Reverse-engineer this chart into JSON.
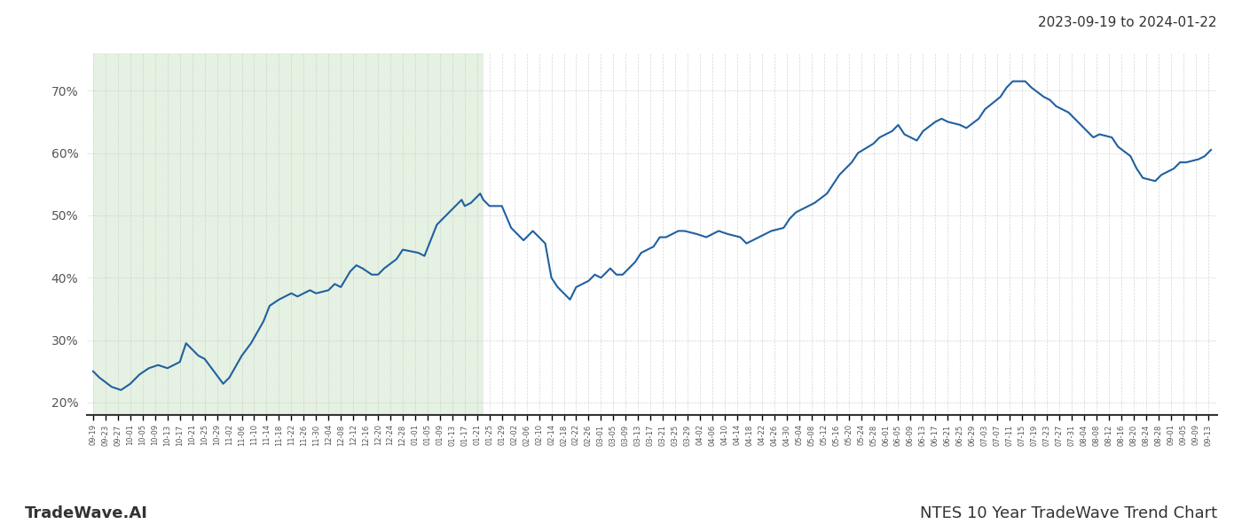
{
  "title_top_right": "2023-09-19 to 2024-01-22",
  "title_bottom_left": "TradeWave.AI",
  "title_bottom_right": "NTES 10 Year TradeWave Trend Chart",
  "line_color": "#2060a0",
  "line_width": 1.5,
  "highlight_color": "#d4e8d0",
  "highlight_alpha": 0.6,
  "highlight_start": "2023-09-19",
  "highlight_end": "2024-01-23",
  "ylim": [
    18,
    76
  ],
  "yticks": [
    20,
    30,
    40,
    50,
    60,
    70
  ],
  "ytick_labels": [
    "20%",
    "30%",
    "40%",
    "50%",
    "60%",
    "70%"
  ],
  "background_color": "#ffffff",
  "grid_color": "#cccccc",
  "dates": [
    "2023-09-19",
    "2023-09-21",
    "2023-09-25",
    "2023-09-28",
    "2023-10-01",
    "2023-10-04",
    "2023-10-07",
    "2023-10-10",
    "2023-10-13",
    "2023-10-17",
    "2023-10-19",
    "2023-10-23",
    "2023-10-25",
    "2023-10-31",
    "2023-11-02",
    "2023-11-06",
    "2023-11-09",
    "2023-11-13",
    "2023-11-15",
    "2023-11-18",
    "2023-11-22",
    "2023-11-24",
    "2023-11-28",
    "2023-11-30",
    "2023-12-04",
    "2023-12-06",
    "2023-12-08",
    "2023-12-11",
    "2023-12-13",
    "2023-12-15",
    "2023-12-18",
    "2023-12-20",
    "2023-12-22",
    "2023-12-26",
    "2023-12-28",
    "2024-01-02",
    "2024-01-04",
    "2024-01-08",
    "2024-01-11",
    "2024-01-16",
    "2024-01-17",
    "2024-01-19",
    "2024-01-22",
    "2024-01-23",
    "2024-01-25",
    "2024-01-29",
    "2024-02-01",
    "2024-02-05",
    "2024-02-08",
    "2024-02-12",
    "2024-02-14",
    "2024-02-16",
    "2024-02-20",
    "2024-02-22",
    "2024-02-26",
    "2024-02-28",
    "2024-03-01",
    "2024-03-04",
    "2024-03-06",
    "2024-03-08",
    "2024-03-12",
    "2024-03-14",
    "2024-03-18",
    "2024-03-20",
    "2024-03-22",
    "2024-03-26",
    "2024-03-28",
    "2024-04-01",
    "2024-04-04",
    "2024-04-08",
    "2024-04-11",
    "2024-04-15",
    "2024-04-17",
    "2024-04-19",
    "2024-04-23",
    "2024-04-25",
    "2024-04-29",
    "2024-05-01",
    "2024-05-03",
    "2024-05-07",
    "2024-05-09",
    "2024-05-13",
    "2024-05-15",
    "2024-05-17",
    "2024-05-21",
    "2024-05-23",
    "2024-05-28",
    "2024-05-30",
    "2024-06-03",
    "2024-06-05",
    "2024-06-07",
    "2024-06-11",
    "2024-06-13",
    "2024-06-17",
    "2024-06-19",
    "2024-06-21",
    "2024-06-25",
    "2024-06-27",
    "2024-07-01",
    "2024-07-03",
    "2024-07-08",
    "2024-07-10",
    "2024-07-12",
    "2024-07-16",
    "2024-07-18",
    "2024-07-22",
    "2024-07-24",
    "2024-07-26",
    "2024-07-30",
    "2024-08-01",
    "2024-08-05",
    "2024-08-07",
    "2024-08-09",
    "2024-08-13",
    "2024-08-15",
    "2024-08-19",
    "2024-08-21",
    "2024-08-23",
    "2024-08-27",
    "2024-08-29",
    "2024-09-02",
    "2024-09-04",
    "2024-09-06",
    "2024-09-10",
    "2024-09-12",
    "2024-09-14"
  ],
  "values": [
    25.0,
    24.0,
    22.5,
    22.0,
    23.0,
    24.5,
    25.5,
    26.0,
    25.5,
    26.5,
    29.5,
    27.5,
    27.0,
    23.0,
    24.0,
    27.5,
    29.5,
    33.0,
    35.5,
    36.5,
    37.5,
    37.0,
    38.0,
    37.5,
    38.0,
    39.0,
    38.5,
    41.0,
    42.0,
    41.5,
    40.5,
    40.5,
    41.5,
    43.0,
    44.5,
    44.0,
    43.5,
    48.5,
    50.0,
    52.5,
    51.5,
    52.0,
    53.5,
    52.5,
    51.5,
    51.5,
    48.0,
    46.0,
    47.5,
    45.5,
    40.0,
    38.5,
    36.5,
    38.5,
    39.5,
    40.5,
    40.0,
    41.5,
    40.5,
    40.5,
    42.5,
    44.0,
    45.0,
    46.5,
    46.5,
    47.5,
    47.5,
    47.0,
    46.5,
    47.5,
    47.0,
    46.5,
    45.5,
    46.0,
    47.0,
    47.5,
    48.0,
    49.5,
    50.5,
    51.5,
    52.0,
    53.5,
    55.0,
    56.5,
    58.5,
    60.0,
    61.5,
    62.5,
    63.5,
    64.5,
    63.0,
    62.0,
    63.5,
    65.0,
    65.5,
    65.0,
    64.5,
    64.0,
    65.5,
    67.0,
    69.0,
    70.5,
    71.5,
    71.5,
    70.5,
    69.0,
    68.5,
    67.5,
    66.5,
    65.5,
    63.5,
    62.5,
    63.0,
    62.5,
    61.0,
    59.5,
    57.5,
    56.0,
    55.5,
    56.5,
    57.5,
    58.5,
    58.5,
    59.0,
    59.5,
    60.5
  ]
}
